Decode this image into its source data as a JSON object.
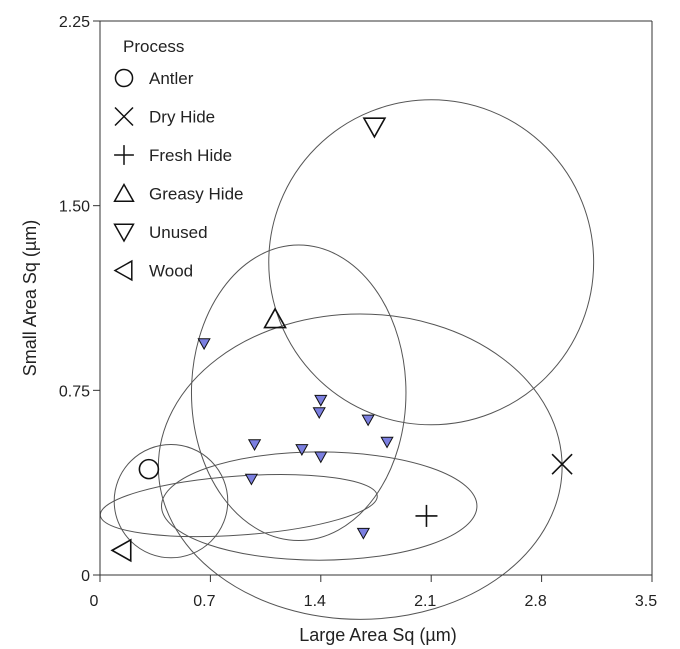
{
  "chart_data": {
    "type": "scatter",
    "xlabel": "Large Area Sq (µm)",
    "ylabel": "Small Area Sq (µm)",
    "xlim": [
      0,
      3.5
    ],
    "ylim": [
      0,
      2.25
    ],
    "xticks": [
      {
        "value": 0,
        "label": "0"
      },
      {
        "value": 0.7,
        "label": "0.7"
      },
      {
        "value": 1.4,
        "label": "1.4"
      },
      {
        "value": 2.1,
        "label": "2.1"
      },
      {
        "value": 2.8,
        "label": "2.8"
      },
      {
        "value": 3.5,
        "label": "3.5"
      }
    ],
    "yticks": [
      {
        "value": 0,
        "label": "0"
      },
      {
        "value": 0.75,
        "label": "0.75"
      },
      {
        "value": 1.5,
        "label": "1.50"
      },
      {
        "value": 2.25,
        "label": "2.25"
      }
    ],
    "legend_title": "Process",
    "legend_position": "top-left",
    "grid": false,
    "series": [
      {
        "name": "Antler",
        "marker": "circle",
        "points": [
          {
            "x": 0.31,
            "y": 0.43
          }
        ]
      },
      {
        "name": "Dry Hide",
        "marker": "x",
        "points": [
          {
            "x": 2.93,
            "y": 0.45
          }
        ]
      },
      {
        "name": "Fresh Hide",
        "marker": "plus",
        "points": [
          {
            "x": 2.07,
            "y": 0.24
          }
        ]
      },
      {
        "name": "Greasy Hide",
        "marker": "triangle-up",
        "points": [
          {
            "x": 1.11,
            "y": 1.04
          }
        ]
      },
      {
        "name": "Unused",
        "marker": "triangle-down",
        "points": [
          {
            "x": 1.74,
            "y": 1.82
          }
        ]
      },
      {
        "name": "Wood",
        "marker": "triangle-left",
        "points": [
          {
            "x": 0.14,
            "y": 0.1
          }
        ]
      }
    ],
    "small_points": {
      "marker": "triangle-down",
      "color": "#7b7fe0",
      "points": [
        {
          "x": 0.66,
          "y": 0.94
        },
        {
          "x": 0.98,
          "y": 0.53
        },
        {
          "x": 0.96,
          "y": 0.39
        },
        {
          "x": 1.28,
          "y": 0.51
        },
        {
          "x": 1.4,
          "y": 0.71
        },
        {
          "x": 1.39,
          "y": 0.66
        },
        {
          "x": 1.4,
          "y": 0.48
        },
        {
          "x": 1.7,
          "y": 0.63
        },
        {
          "x": 1.82,
          "y": 0.54
        },
        {
          "x": 1.67,
          "y": 0.17
        }
      ]
    },
    "ellipses": [
      {
        "group": "Antler",
        "cx": 0.88,
        "cy": 0.282,
        "rx": 0.88,
        "ry": 0.12,
        "rotation": -4
      },
      {
        "group": "Dry Hide",
        "cx": 1.65,
        "cy": 0.44,
        "rx": 1.28,
        "ry": 0.62,
        "rotation": 0
      },
      {
        "group": "Fresh Hide",
        "cx": 1.39,
        "cy": 0.28,
        "rx": 1.0,
        "ry": 0.22,
        "rotation": 0
      },
      {
        "group": "Greasy Hide",
        "cx": 1.26,
        "cy": 0.74,
        "rx": 0.68,
        "ry": 0.6,
        "rotation": 0
      },
      {
        "group": "Unused",
        "cx": 2.1,
        "cy": 1.27,
        "rx": 1.03,
        "ry": 0.66,
        "rotation": 0
      },
      {
        "group": "Wood",
        "cx": 0.45,
        "cy": 0.3,
        "rx": 0.36,
        "ry": 0.23,
        "rotation": 0
      }
    ]
  }
}
